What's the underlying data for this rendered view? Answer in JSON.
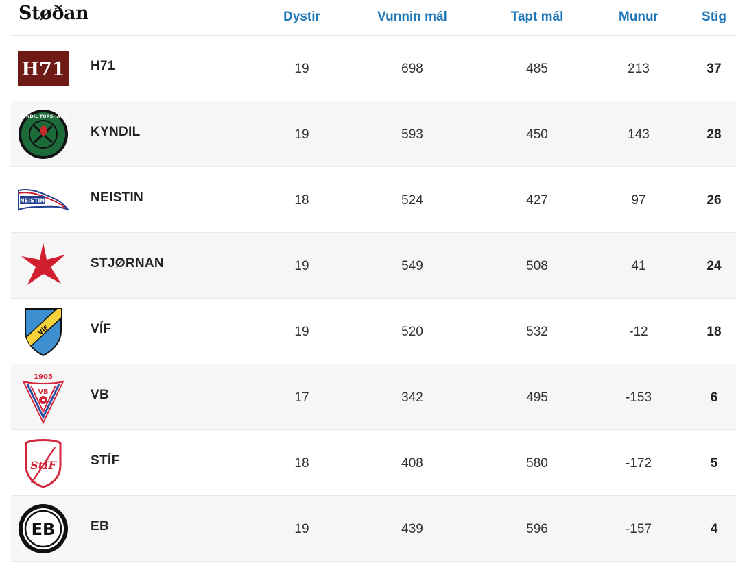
{
  "table": {
    "title": "Støðan",
    "columns": {
      "played": "Dystir",
      "goals_for": "Vunnin mál",
      "goals_against": "Tapt mál",
      "difference": "Munur",
      "points": "Stig"
    },
    "rows": [
      {
        "team": "H71",
        "logo": "h71-logo",
        "logo_text": "H71",
        "played": "19",
        "goals_for": "698",
        "goals_against": "485",
        "difference": "213",
        "points": "37"
      },
      {
        "team": "KYNDIL",
        "logo": "kyndil-logo",
        "logo_text": "KYNDIL TÓRSHAVN",
        "played": "19",
        "goals_for": "593",
        "goals_against": "450",
        "difference": "143",
        "points": "28"
      },
      {
        "team": "NEISTIN",
        "logo": "neistin-logo",
        "logo_text": "NEISTIN",
        "played": "18",
        "goals_for": "524",
        "goals_against": "427",
        "difference": "97",
        "points": "26"
      },
      {
        "team": "STJØRNAN",
        "logo": "stjornan-logo",
        "played": "19",
        "goals_for": "549",
        "goals_against": "508",
        "difference": "41",
        "points": "24"
      },
      {
        "team": "VÍF",
        "logo": "vif-logo",
        "logo_text": "VÍF",
        "played": "19",
        "goals_for": "520",
        "goals_against": "532",
        "difference": "-12",
        "points": "18"
      },
      {
        "team": "VB",
        "logo": "vb-logo",
        "logo_text": "VB",
        "logo_year": "1905",
        "played": "17",
        "goals_for": "342",
        "goals_against": "495",
        "difference": "-153",
        "points": "6"
      },
      {
        "team": "STÍF",
        "logo": "stif-logo",
        "logo_text": "StÍF",
        "played": "18",
        "goals_for": "408",
        "goals_against": "580",
        "difference": "-172",
        "points": "5"
      },
      {
        "team": "EB",
        "logo": "eb-logo",
        "logo_text": "EB",
        "played": "19",
        "goals_for": "439",
        "goals_against": "596",
        "difference": "-157",
        "points": "4"
      }
    ]
  },
  "colors": {
    "header_text": "#1f77b8",
    "alt_row_bg": "#f6f6f6",
    "h71_red": "#6e1a16",
    "kyndil_green": "#1d6b3a",
    "neistin_blue": "#1f3f8f",
    "stjornan_red": "#d21f2f",
    "vif_blue": "#3d8fd0",
    "vif_yellow": "#f5d23b",
    "vb_red": "#d3263a",
    "stif_red": "#d3263a"
  }
}
